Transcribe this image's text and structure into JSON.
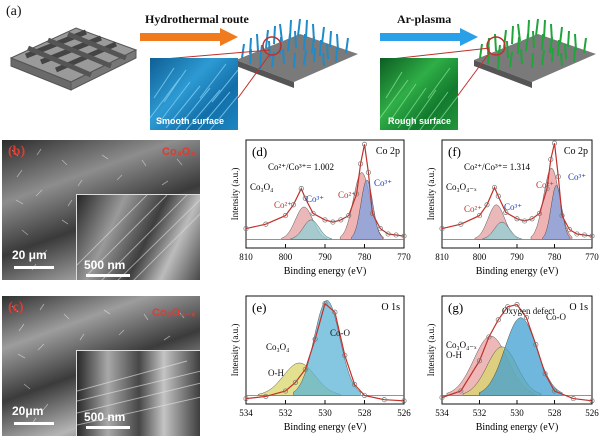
{
  "panel_a": {
    "label": "(a)",
    "arrow1_text": "Hydrothermal route",
    "arrow2_text": "Ar-plasma",
    "zoom1_text": "Smooth surface",
    "zoom2_text": "Rough surface",
    "colors": {
      "arrow1": "#f07b1e",
      "arrow2": "#2aa0e8",
      "nanowire_blue": "#1f8bc8",
      "nanowire_green": "#1fa53c",
      "scaffold": "#7a7a7a"
    }
  },
  "panel_b": {
    "label": "(b)",
    "phase_label": "Co₃O₄",
    "scale_main": "20 μm",
    "scale_inset": "500 nm"
  },
  "panel_c": {
    "label": "(c)",
    "phase_label": "Co₃O₄₋ₓ",
    "scale_main": "20μm",
    "scale_inset": "500 nm"
  },
  "chart_data": [
    {
      "panel": "(d)",
      "type": "line",
      "title": "Co 2p",
      "xlabel": "Binding energy (eV)",
      "ylabel": "Intensity (a.u.)",
      "xlim": [
        810,
        770
      ],
      "xticks": [
        810,
        800,
        790,
        780,
        770
      ],
      "annotation": "Co²⁺/Co³⁺= 1.002",
      "sample_label": "Co₃O₄",
      "peak_labels": [
        "Co²⁺",
        "Co³⁺",
        "Co²⁺",
        "Co³⁺"
      ],
      "series": [
        {
          "name": "",
          "x": [
            810,
            805,
            800,
            798,
            796,
            795,
            793,
            790,
            788,
            786,
            784,
            782,
            781,
            780,
            779,
            778,
            776,
            774,
            772,
            770
          ],
          "values": [
            0.18,
            0.22,
            0.3,
            0.4,
            0.55,
            0.46,
            0.32,
            0.26,
            0.24,
            0.26,
            0.3,
            0.5,
            0.78,
            0.96,
            0.7,
            0.32,
            0.18,
            0.13,
            0.12,
            0.11
          ]
        }
      ]
    },
    {
      "panel": "(f)",
      "type": "line",
      "title": "Co 2p",
      "xlabel": "Binding energy (eV)",
      "ylabel": "Intensity (a.u.)",
      "xlim": [
        810,
        770
      ],
      "xticks": [
        810,
        800,
        790,
        780,
        770
      ],
      "annotation": "Co²⁺/Co³⁺= 1.314",
      "sample_label": "Co₃O₄₋ₓ",
      "peak_labels": [
        "Co²⁺",
        "Co³⁺",
        "Co²⁺",
        "Co³⁺"
      ],
      "series": [
        {
          "name": "",
          "x": [
            810,
            805,
            800,
            798,
            796,
            795,
            793,
            790,
            788,
            786,
            784,
            782,
            781,
            780,
            779,
            778,
            776,
            774,
            772,
            770
          ],
          "values": [
            0.18,
            0.22,
            0.3,
            0.4,
            0.56,
            0.48,
            0.33,
            0.27,
            0.25,
            0.27,
            0.32,
            0.55,
            0.82,
            0.97,
            0.66,
            0.3,
            0.17,
            0.13,
            0.12,
            0.11
          ]
        }
      ]
    },
    {
      "panel": "(e)",
      "type": "line",
      "title": "O 1s",
      "xlabel": "Binding energy (eV)",
      "ylabel": "Intensity (a.u.)",
      "xlim": [
        534,
        526
      ],
      "xticks": [
        534,
        532,
        530,
        528,
        526
      ],
      "sample_label": "Co₃O₄",
      "peak_labels": [
        "Co-O",
        "O-H"
      ],
      "series": [
        {
          "name": "",
          "x": [
            534,
            533,
            532,
            531.5,
            531,
            530.5,
            530,
            529.5,
            529,
            528.5,
            528,
            527,
            526
          ],
          "values": [
            0.05,
            0.07,
            0.12,
            0.2,
            0.32,
            0.6,
            0.93,
            0.85,
            0.45,
            0.18,
            0.08,
            0.04,
            0.03
          ]
        }
      ]
    },
    {
      "panel": "(g)",
      "type": "line",
      "title": "O 1s",
      "xlabel": "Binding energy (eV)",
      "ylabel": "Intensity (a.u.)",
      "xlim": [
        534,
        526
      ],
      "xticks": [
        534,
        532,
        530,
        528,
        526
      ],
      "sample_label": "Co₃O₄₋ₓ",
      "peak_labels": [
        "Oxygen defect",
        "Co-O",
        "O-H"
      ],
      "series": [
        {
          "name": "",
          "x": [
            534,
            533,
            532,
            531.5,
            531,
            530.5,
            530,
            529.5,
            529,
            528.5,
            528,
            527,
            526
          ],
          "values": [
            0.06,
            0.12,
            0.4,
            0.62,
            0.78,
            0.9,
            0.92,
            0.8,
            0.55,
            0.28,
            0.12,
            0.05,
            0.03
          ]
        }
      ]
    }
  ]
}
